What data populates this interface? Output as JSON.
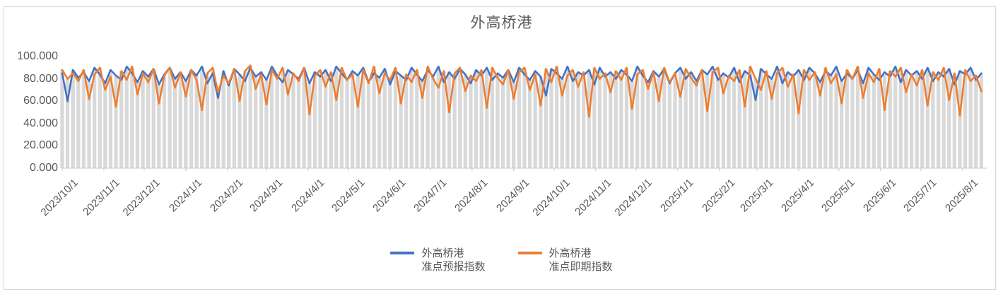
{
  "title": "外高桥港",
  "colors": {
    "series_forecast": "#4472C4",
    "series_spot": "#ED7D31",
    "columns": "#D9D9D9",
    "axis_line": "#C8C8C8",
    "axis_text": "#595959",
    "title_text": "#595959",
    "frame_border": "#D6D6D6"
  },
  "legend": {
    "items": [
      {
        "line1": "外高桥港",
        "line2": "准点预报指数",
        "color": "#4472C4"
      },
      {
        "line1": "外高桥港",
        "line2": "准点即期指数",
        "color": "#ED7D31"
      }
    ]
  },
  "chart_data": {
    "type": "line",
    "title": "外高桥港",
    "xlabel": "",
    "ylabel": "",
    "grid": false,
    "legend_position": "bottom",
    "y_axis": {
      "min": 0,
      "max": 100,
      "step": 20,
      "tick_labels": [
        "0.000",
        "20.000",
        "40.000",
        "60.000",
        "80.000",
        "100.000"
      ]
    },
    "x_total_days": 688,
    "sample_interval_days": 4,
    "x_ticks": [
      {
        "day": 0,
        "label": "2023/10/1"
      },
      {
        "day": 31,
        "label": "2023/11/1"
      },
      {
        "day": 61,
        "label": "2023/12/1"
      },
      {
        "day": 92,
        "label": "2024/1/1"
      },
      {
        "day": 123,
        "label": "2024/2/1"
      },
      {
        "day": 152,
        "label": "2024/3/1"
      },
      {
        "day": 183,
        "label": "2024/4/1"
      },
      {
        "day": 213,
        "label": "2024/5/1"
      },
      {
        "day": 244,
        "label": "2024/6/1"
      },
      {
        "day": 274,
        "label": "2024/7/1"
      },
      {
        "day": 305,
        "label": "2024/8/1"
      },
      {
        "day": 336,
        "label": "2024/9/1"
      },
      {
        "day": 366,
        "label": "2024/10/1"
      },
      {
        "day": 397,
        "label": "2024/11/1"
      },
      {
        "day": 427,
        "label": "2024/12/1"
      },
      {
        "day": 458,
        "label": "2025/1/1"
      },
      {
        "day": 489,
        "label": "2025/2/1"
      },
      {
        "day": 517,
        "label": "2025/3/1"
      },
      {
        "day": 548,
        "label": "2025/4/1"
      },
      {
        "day": 578,
        "label": "2025/5/1"
      },
      {
        "day": 609,
        "label": "2025/6/1"
      },
      {
        "day": 639,
        "label": "2025/7/1"
      },
      {
        "day": 670,
        "label": "2025/8/1"
      }
    ],
    "background_columns": {
      "color": "#D9D9D9",
      "rule": "gray daily columns reaching the upper envelope (max) of the two series"
    },
    "series": [
      {
        "name": "外高桥港准点预报指数",
        "color": "#4472C4",
        "values": [
          85,
          60,
          88,
          81,
          86,
          78,
          90,
          84,
          76,
          88,
          83,
          79,
          91,
          85,
          77,
          87,
          82,
          89,
          75,
          84,
          90,
          80,
          86,
          78,
          88,
          83,
          91,
          76,
          85,
          63,
          87,
          74,
          89,
          84,
          78,
          90,
          82,
          86,
          79,
          91,
          83,
          77,
          88,
          84,
          80,
          90,
          76,
          86,
          82,
          88,
          78,
          91,
          85,
          79,
          87,
          83,
          90,
          77,
          85,
          81,
          89,
          75,
          87,
          83,
          79,
          90,
          84,
          78,
          88,
          82,
          91,
          77,
          86,
          80,
          89,
          84,
          76,
          88,
          83,
          90,
          79,
          85,
          81,
          88,
          77,
          90,
          84,
          79,
          87,
          82,
          65,
          89,
          85,
          80,
          91,
          78,
          86,
          83,
          88,
          75,
          90,
          82,
          86,
          80,
          88,
          84,
          78,
          91,
          83,
          77,
          87,
          82,
          89,
          76,
          85,
          90,
          80,
          86,
          78,
          88,
          84,
          91,
          79,
          85,
          81,
          90,
          77,
          87,
          83,
          61,
          89,
          84,
          80,
          91,
          76,
          86,
          82,
          88,
          79,
          90,
          85,
          77,
          87,
          83,
          91,
          78,
          85,
          80,
          88,
          76,
          90,
          84,
          79,
          86,
          82,
          91,
          77,
          88,
          83,
          87,
          80,
          90,
          78,
          86,
          82,
          89,
          75,
          87,
          84,
          90,
          79,
          85
        ]
      },
      {
        "name": "外高桥港准点即期指数",
        "color": "#ED7D31",
        "values": [
          88,
          80,
          85,
          78,
          88,
          62,
          84,
          90,
          70,
          82,
          55,
          87,
          79,
          91,
          66,
          85,
          77,
          89,
          58,
          83,
          90,
          72,
          86,
          64,
          88,
          79,
          52,
          85,
          90,
          68,
          83,
          76,
          89,
          60,
          87,
          92,
          71,
          84,
          57,
          88,
          80,
          90,
          66,
          85,
          78,
          90,
          48,
          83,
          88,
          73,
          86,
          61,
          90,
          79,
          84,
          55,
          88,
          76,
          91,
          67,
          85,
          79,
          90,
          58,
          84,
          77,
          88,
          63,
          91,
          80,
          72,
          87,
          50,
          85,
          90,
          69,
          83,
          78,
          88,
          54,
          90,
          81,
          75,
          88,
          62,
          86,
          90,
          70,
          84,
          56,
          89,
          77,
          91,
          65,
          83,
          88,
          73,
          86,
          46,
          90,
          80,
          85,
          68,
          87,
          79,
          90,
          53,
          84,
          88,
          71,
          86,
          60,
          90,
          77,
          85,
          64,
          89,
          81,
          74,
          88,
          51,
          86,
          90,
          67,
          83,
          78,
          88,
          55,
          91,
          80,
          70,
          87,
          62,
          85,
          90,
          73,
          84,
          49,
          88,
          79,
          86,
          65,
          90,
          76,
          84,
          58,
          88,
          80,
          91,
          63,
          85,
          77,
          89,
          52,
          87,
          82,
          90,
          68,
          84,
          74,
          88,
          56,
          86,
          79,
          90,
          61,
          85,
          47,
          88,
          78,
          83,
          69
        ]
      }
    ]
  }
}
